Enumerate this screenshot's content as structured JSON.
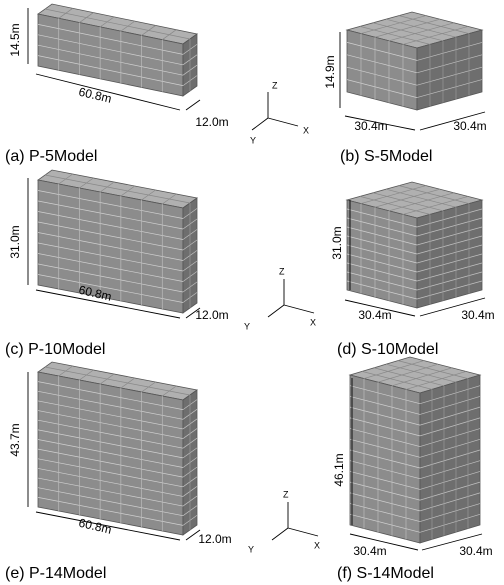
{
  "panels": [
    {
      "caption": "(a) P-5Model",
      "height": "14.5m",
      "width": "60.8m",
      "depth": "12.0m"
    },
    {
      "caption": "(b) S-5Model",
      "height": "14.9m",
      "width": "30.4m",
      "depth": "30.4m"
    },
    {
      "caption": "(c) P-10Model",
      "height": "31.0m",
      "width": "60.8m",
      "depth": "12.0m"
    },
    {
      "caption": "(d) S-10Model",
      "height": "31.0m",
      "width": "30.4m",
      "depth": "30.4m"
    },
    {
      "caption": "(e) P-14Model",
      "height": "43.7m",
      "width": "60.8m",
      "depth": "12.0m"
    },
    {
      "caption": "(f) S-14Model",
      "height": "46.1m",
      "width": "30.4m",
      "depth": "30.4m"
    }
  ],
  "axes": [
    {
      "z": "Z",
      "y": "Y",
      "x": "X"
    },
    {
      "z": "Z",
      "y": "Y",
      "x": "X"
    },
    {
      "z": "Z",
      "y": "Y",
      "x": "X"
    }
  ]
}
